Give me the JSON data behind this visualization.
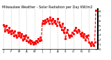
{
  "title": "Milwaukee Weather - Solar Radiation per Day KW/m2",
  "line_color": "red",
  "line_style": "--",
  "line_width": 0.8,
  "marker": "s",
  "marker_size": 1.2,
  "background_color": "#ffffff",
  "grid_color": "#999999",
  "ylim": [
    0,
    8.5
  ],
  "ytick_labels": [
    "8",
    "7",
    "6",
    "5",
    "4",
    "3",
    "2",
    "1",
    "0"
  ],
  "ytick_values": [
    8,
    7,
    6,
    5,
    4,
    3,
    2,
    1,
    0
  ],
  "title_fontsize": 3.5,
  "tick_fontsize": 2.8,
  "values": [
    5.2,
    4.8,
    3.8,
    5.0,
    4.2,
    3.5,
    4.5,
    3.8,
    3.2,
    4.0,
    3.5,
    2.8,
    3.8,
    3.0,
    2.5,
    3.5,
    2.8,
    3.5,
    2.5,
    3.2,
    2.0,
    2.8,
    2.2,
    3.0,
    1.8,
    2.5,
    1.5,
    2.0,
    1.2,
    1.8,
    1.5,
    1.0,
    1.5,
    1.2,
    1.8,
    1.5,
    2.2,
    1.8,
    2.5,
    2.0,
    5.5,
    6.0,
    5.5,
    6.2,
    5.8,
    6.5,
    6.0,
    5.5,
    6.8,
    6.2,
    5.5,
    6.5,
    5.8,
    6.0,
    5.5,
    5.0,
    6.5,
    5.8,
    5.2,
    4.8,
    4.2,
    5.5,
    3.5,
    4.5,
    2.2,
    3.5,
    4.2,
    3.0,
    2.5,
    3.0,
    2.8,
    3.5,
    3.2,
    4.0,
    4.5,
    3.8,
    3.5,
    4.2,
    3.8,
    3.2,
    2.8,
    3.5,
    2.5,
    3.2,
    2.0,
    2.8,
    2.5,
    3.0,
    1.5,
    1.2,
    0.8,
    1.5,
    1.0,
    0.8,
    1.5,
    8.2
  ],
  "month_tick_positions": [
    0,
    8,
    16,
    24,
    32,
    40,
    48,
    56,
    64,
    72,
    80,
    88,
    95
  ],
  "month_labels": [
    "J",
    "F",
    "M",
    "A",
    "M",
    "J",
    "J",
    "A",
    "S",
    "O",
    "N",
    "D",
    ""
  ]
}
